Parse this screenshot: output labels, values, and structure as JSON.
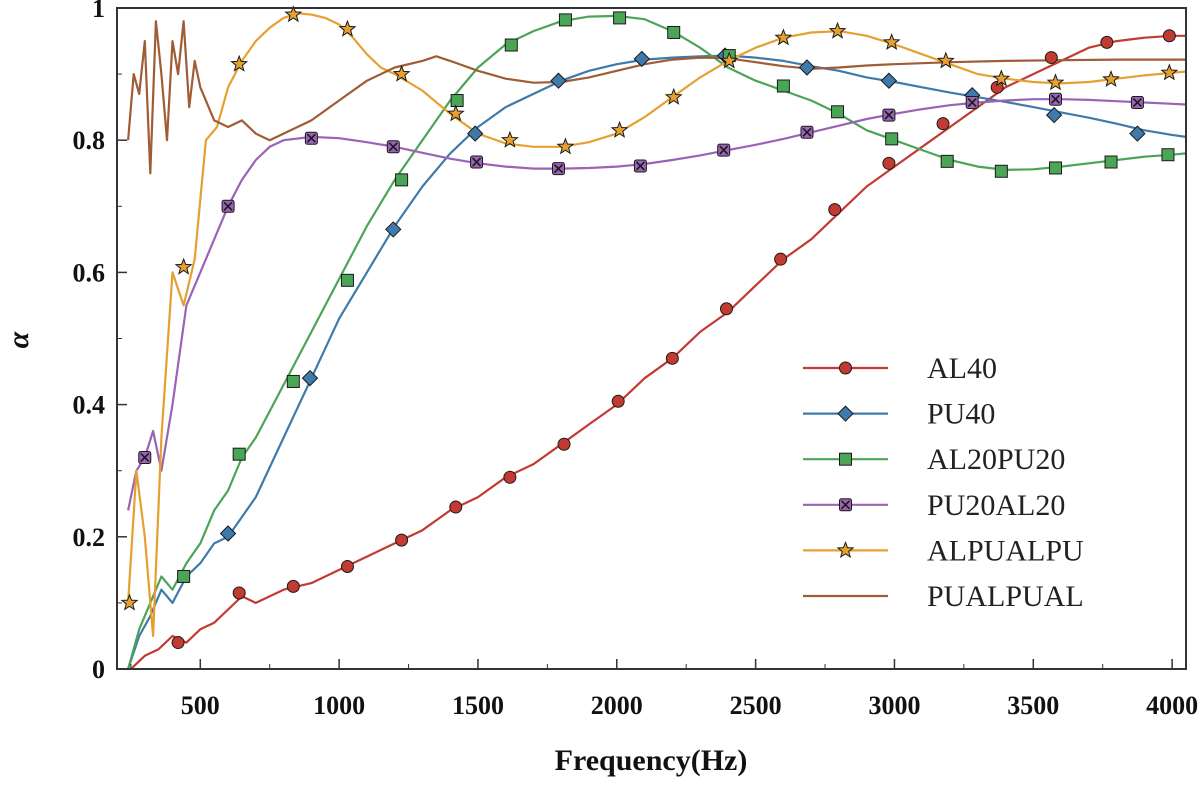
{
  "chart_data": {
    "type": "line",
    "title": "",
    "xlabel": "Frequency(Hz)",
    "ylabel": "α",
    "xlim": [
      200,
      4050
    ],
    "ylim": [
      0,
      1
    ],
    "x_ticks": [
      500,
      1000,
      1500,
      2000,
      2500,
      3000,
      3500,
      4000
    ],
    "x_tick_labels": [
      "500",
      "1000",
      "1500",
      "2000",
      "2500",
      "3000",
      "3500",
      "4000"
    ],
    "y_ticks": [
      0,
      0.2,
      0.4,
      0.6,
      0.8,
      1
    ],
    "y_tick_labels": [
      "0",
      "0.2",
      "0.4",
      "0.6",
      "0.8",
      "1"
    ],
    "grid": false,
    "legend_position": "right",
    "series": [
      {
        "name": "AL40",
        "color": "#c23b32",
        "marker": "circle",
        "x": [
          250,
          300,
          350,
          400,
          450,
          500,
          550,
          600,
          650,
          700,
          800,
          900,
          1000,
          1100,
          1200,
          1300,
          1400,
          1500,
          1600,
          1700,
          1800,
          1900,
          2000,
          2100,
          2200,
          2300,
          2400,
          2500,
          2600,
          2700,
          2800,
          2900,
          3000,
          3100,
          3200,
          3300,
          3400,
          3500,
          3600,
          3700,
          3800,
          3900,
          4000,
          4050
        ],
        "y": [
          0.0,
          0.02,
          0.03,
          0.05,
          0.04,
          0.06,
          0.07,
          0.09,
          0.11,
          0.1,
          0.12,
          0.13,
          0.15,
          0.17,
          0.19,
          0.21,
          0.24,
          0.26,
          0.29,
          0.31,
          0.34,
          0.37,
          0.4,
          0.44,
          0.47,
          0.51,
          0.54,
          0.58,
          0.62,
          0.65,
          0.69,
          0.73,
          0.76,
          0.79,
          0.82,
          0.85,
          0.88,
          0.9,
          0.92,
          0.94,
          0.95,
          0.955,
          0.958,
          0.958
        ],
        "marker_x": [
          420,
          640,
          835,
          1030,
          1225,
          1420,
          1615,
          1810,
          2005,
          2200,
          2395,
          2590,
          2785,
          2980,
          3175,
          3370,
          3565,
          3765,
          3990
        ],
        "marker_y": [
          0.04,
          0.115,
          0.125,
          0.155,
          0.195,
          0.245,
          0.29,
          0.34,
          0.405,
          0.47,
          0.545,
          0.62,
          0.695,
          0.765,
          0.825,
          0.88,
          0.925,
          0.948,
          0.958
        ]
      },
      {
        "name": "PU40",
        "color": "#3f7aab",
        "marker": "diamond",
        "x": [
          240,
          280,
          320,
          360,
          400,
          450,
          500,
          550,
          600,
          700,
          800,
          900,
          1000,
          1100,
          1200,
          1300,
          1400,
          1500,
          1600,
          1700,
          1800,
          1900,
          2000,
          2100,
          2200,
          2300,
          2400,
          2500,
          2600,
          2700,
          2800,
          2900,
          3000,
          3100,
          3200,
          3300,
          3400,
          3500,
          3600,
          3700,
          3800,
          3900,
          4000,
          4050
        ],
        "y": [
          0.0,
          0.05,
          0.08,
          0.12,
          0.1,
          0.14,
          0.16,
          0.19,
          0.2,
          0.26,
          0.35,
          0.44,
          0.53,
          0.6,
          0.67,
          0.73,
          0.78,
          0.82,
          0.85,
          0.87,
          0.89,
          0.905,
          0.915,
          0.922,
          0.925,
          0.927,
          0.928,
          0.925,
          0.92,
          0.912,
          0.905,
          0.895,
          0.888,
          0.88,
          0.872,
          0.865,
          0.858,
          0.85,
          0.842,
          0.834,
          0.825,
          0.815,
          0.808,
          0.805
        ],
        "marker_x": [
          600,
          895,
          1195,
          1490,
          1790,
          2090,
          2390,
          2685,
          2980,
          3280,
          3575,
          3875
        ],
        "marker_y": [
          0.205,
          0.44,
          0.665,
          0.81,
          0.89,
          0.923,
          0.928,
          0.91,
          0.89,
          0.868,
          0.838,
          0.81
        ]
      },
      {
        "name": "AL20PU20",
        "color": "#4ba556",
        "marker": "square",
        "x": [
          240,
          280,
          320,
          360,
          400,
          450,
          500,
          550,
          600,
          650,
          700,
          800,
          900,
          1000,
          1100,
          1200,
          1300,
          1400,
          1500,
          1600,
          1700,
          1800,
          1900,
          2000,
          2100,
          2200,
          2300,
          2400,
          2500,
          2600,
          2700,
          2800,
          2900,
          3000,
          3100,
          3200,
          3300,
          3400,
          3500,
          3600,
          3700,
          3800,
          3900,
          4000,
          4050
        ],
        "y": [
          0.0,
          0.06,
          0.1,
          0.14,
          0.12,
          0.16,
          0.19,
          0.24,
          0.27,
          0.32,
          0.35,
          0.43,
          0.51,
          0.59,
          0.67,
          0.74,
          0.8,
          0.86,
          0.91,
          0.945,
          0.965,
          0.98,
          0.987,
          0.988,
          0.983,
          0.965,
          0.94,
          0.91,
          0.89,
          0.875,
          0.86,
          0.84,
          0.815,
          0.8,
          0.785,
          0.77,
          0.76,
          0.755,
          0.756,
          0.76,
          0.765,
          0.77,
          0.775,
          0.778,
          0.78
        ],
        "marker_x": [
          440,
          640,
          835,
          1030,
          1225,
          1425,
          1620,
          1815,
          2010,
          2205,
          2405,
          2600,
          2795,
          2990,
          3190,
          3385,
          3580,
          3780,
          3985
        ],
        "marker_y": [
          0.14,
          0.325,
          0.435,
          0.588,
          0.74,
          0.86,
          0.944,
          0.982,
          0.985,
          0.963,
          0.928,
          0.882,
          0.843,
          0.802,
          0.768,
          0.753,
          0.758,
          0.767,
          0.778
        ]
      },
      {
        "name": "PU20AL20",
        "color": "#9a63b6",
        "marker": "x-square",
        "x": [
          240,
          270,
          300,
          330,
          360,
          400,
          450,
          500,
          550,
          600,
          650,
          700,
          750,
          800,
          900,
          1000,
          1100,
          1200,
          1300,
          1400,
          1500,
          1600,
          1700,
          1800,
          1900,
          2000,
          2100,
          2200,
          2300,
          2400,
          2500,
          2600,
          2700,
          2800,
          2900,
          3000,
          3100,
          3200,
          3300,
          3400,
          3500,
          3600,
          3700,
          3800,
          3900,
          4000,
          4050
        ],
        "y": [
          0.24,
          0.3,
          0.32,
          0.36,
          0.3,
          0.4,
          0.55,
          0.6,
          0.65,
          0.7,
          0.74,
          0.77,
          0.79,
          0.8,
          0.805,
          0.803,
          0.797,
          0.79,
          0.781,
          0.772,
          0.765,
          0.76,
          0.757,
          0.757,
          0.758,
          0.76,
          0.764,
          0.77,
          0.777,
          0.785,
          0.793,
          0.802,
          0.812,
          0.822,
          0.832,
          0.84,
          0.847,
          0.853,
          0.857,
          0.86,
          0.862,
          0.862,
          0.861,
          0.859,
          0.857,
          0.855,
          0.854
        ],
        "marker_x": [
          300,
          600,
          900,
          1195,
          1495,
          1790,
          2085,
          2385,
          2685,
          2980,
          3280,
          3580,
          3875
        ],
        "marker_y": [
          0.32,
          0.7,
          0.803,
          0.79,
          0.767,
          0.757,
          0.761,
          0.785,
          0.812,
          0.838,
          0.857,
          0.862,
          0.857
        ]
      },
      {
        "name": "ALPUALPU",
        "color": "#e6a030",
        "marker": "star",
        "x": [
          240,
          270,
          300,
          330,
          360,
          400,
          440,
          480,
          520,
          560,
          600,
          650,
          700,
          750,
          800,
          850,
          900,
          950,
          1000,
          1050,
          1100,
          1150,
          1200,
          1300,
          1400,
          1500,
          1600,
          1700,
          1800,
          1900,
          2000,
          2100,
          2200,
          2300,
          2400,
          2500,
          2600,
          2700,
          2800,
          2900,
          3000,
          3100,
          3200,
          3300,
          3400,
          3500,
          3600,
          3700,
          3800,
          3900,
          4000,
          4050
        ],
        "y": [
          0.1,
          0.3,
          0.2,
          0.05,
          0.35,
          0.6,
          0.55,
          0.62,
          0.8,
          0.82,
          0.88,
          0.92,
          0.95,
          0.97,
          0.985,
          0.992,
          0.99,
          0.985,
          0.975,
          0.955,
          0.93,
          0.91,
          0.9,
          0.875,
          0.84,
          0.81,
          0.795,
          0.79,
          0.79,
          0.797,
          0.81,
          0.835,
          0.865,
          0.895,
          0.92,
          0.94,
          0.955,
          0.963,
          0.965,
          0.958,
          0.945,
          0.93,
          0.915,
          0.9,
          0.893,
          0.888,
          0.886,
          0.888,
          0.893,
          0.898,
          0.902,
          0.904
        ],
        "marker_x": [
          245,
          440,
          640,
          835,
          1030,
          1225,
          1420,
          1615,
          1815,
          2010,
          2205,
          2405,
          2600,
          2795,
          2990,
          3185,
          3385,
          3580,
          3780,
          3990
        ],
        "marker_y": [
          0.1,
          0.608,
          0.915,
          0.99,
          0.968,
          0.9,
          0.84,
          0.8,
          0.79,
          0.815,
          0.865,
          0.92,
          0.955,
          0.965,
          0.948,
          0.92,
          0.893,
          0.887,
          0.892,
          0.902
        ]
      },
      {
        "name": "PUALPUAL",
        "color": "#a05c35",
        "marker": "none",
        "x": [
          240,
          260,
          280,
          300,
          320,
          340,
          360,
          380,
          400,
          420,
          440,
          460,
          480,
          500,
          550,
          600,
          650,
          700,
          750,
          800,
          900,
          1000,
          1100,
          1200,
          1300,
          1350,
          1400,
          1500,
          1600,
          1700,
          1800,
          1900,
          2000,
          2100,
          2200,
          2300,
          2400,
          2500,
          2600,
          2700,
          2800,
          2900,
          3000,
          3200,
          3400,
          3600,
          3800,
          4000,
          4050
        ],
        "y": [
          0.8,
          0.9,
          0.87,
          0.95,
          0.75,
          0.98,
          0.9,
          0.8,
          0.95,
          0.9,
          0.98,
          0.85,
          0.92,
          0.88,
          0.83,
          0.82,
          0.83,
          0.81,
          0.8,
          0.81,
          0.83,
          0.86,
          0.89,
          0.91,
          0.92,
          0.927,
          0.92,
          0.905,
          0.893,
          0.887,
          0.888,
          0.895,
          0.905,
          0.915,
          0.922,
          0.925,
          0.924,
          0.918,
          0.912,
          0.908,
          0.91,
          0.913,
          0.915,
          0.918,
          0.92,
          0.921,
          0.922,
          0.922,
          0.922
        ]
      }
    ]
  }
}
